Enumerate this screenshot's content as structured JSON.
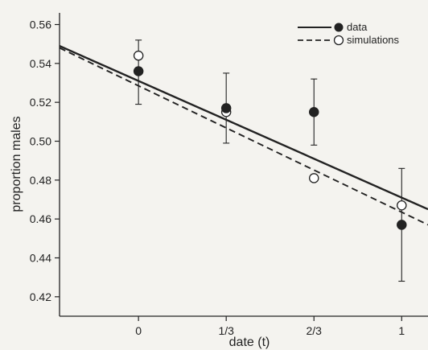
{
  "chart_data": {
    "type": "scatter",
    "xlabel": "date (t)",
    "ylabel": "proportion males",
    "xlim": [
      -0.3,
      1.1
    ],
    "ylim": [
      0.41,
      0.566
    ],
    "x_ticks": [
      0,
      0.3333,
      0.6667,
      1
    ],
    "x_tick_labels": [
      "0",
      "1/3",
      "2/3",
      "1"
    ],
    "y_ticks": [
      0.42,
      0.44,
      0.46,
      0.48,
      0.5,
      0.52,
      0.54,
      0.56
    ],
    "y_tick_labels": [
      "0.42",
      "0.44",
      "0.46",
      "0.48",
      "0.50",
      "0.52",
      "0.54",
      "0.56"
    ],
    "legend_position": "top-right",
    "grid": false,
    "series": [
      {
        "name": "data",
        "marker": "filled-circle",
        "line_style": "solid",
        "color": "#222222",
        "points": [
          {
            "x": 0,
            "y": 0.536,
            "err_low": 0.519,
            "err_high": 0.552
          },
          {
            "x": 0.3333,
            "y": 0.517,
            "err_low": 0.499,
            "err_high": 0.535
          },
          {
            "x": 0.6667,
            "y": 0.515,
            "err_low": 0.498,
            "err_high": 0.532
          },
          {
            "x": 1,
            "y": 0.457,
            "err_low": 0.428,
            "err_high": 0.486
          }
        ],
        "fit_line": {
          "x": [
            -0.3,
            1.1
          ],
          "y": [
            0.549,
            0.465
          ]
        }
      },
      {
        "name": "simulations",
        "marker": "open-circle",
        "line_style": "dashed",
        "color": "#222222",
        "points": [
          {
            "x": 0,
            "y": 0.544
          },
          {
            "x": 0.3333,
            "y": 0.515
          },
          {
            "x": 0.6667,
            "y": 0.481
          },
          {
            "x": 1,
            "y": 0.467
          }
        ],
        "fit_line": {
          "x": [
            -0.3,
            1.1
          ],
          "y": [
            0.548,
            0.457
          ]
        }
      }
    ]
  }
}
